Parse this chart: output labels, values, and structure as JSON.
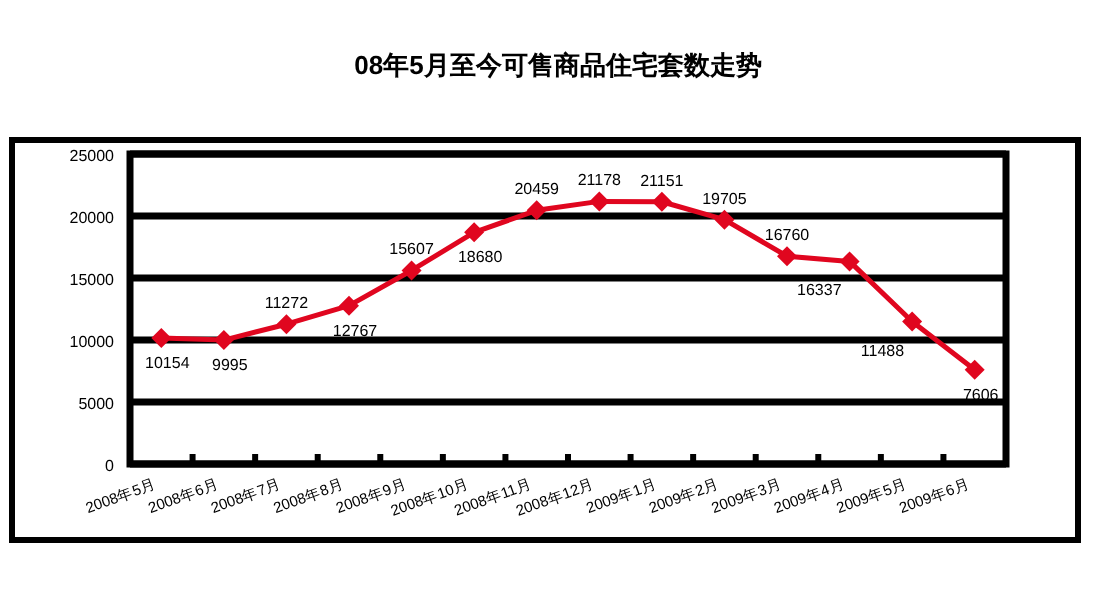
{
  "chart_data": {
    "type": "line",
    "title": "08年5月至今可售商品住宅套数走势",
    "categories": [
      "2008年5月",
      "2008年6月",
      "2008年7月",
      "2008年8月",
      "2008年9月",
      "2008年10月",
      "2008年11月",
      "2008年12月",
      "2009年1月",
      "2009年2月",
      "2009年3月",
      "2009年4月",
      "2009年5月",
      "2009年6月"
    ],
    "series": [
      {
        "color": "#e0061f",
        "values": [
          10154,
          9995,
          11272,
          12767,
          15607,
          18680,
          20459,
          21178,
          21151,
          19705,
          16760,
          16337,
          11488,
          7606
        ]
      }
    ],
    "ylim": [
      0,
      25000
    ],
    "yticks": [
      0,
      5000,
      10000,
      15000,
      20000,
      25000
    ],
    "grid": "y",
    "marker": "diamond",
    "line_style": "solid",
    "data_labels": true
  }
}
